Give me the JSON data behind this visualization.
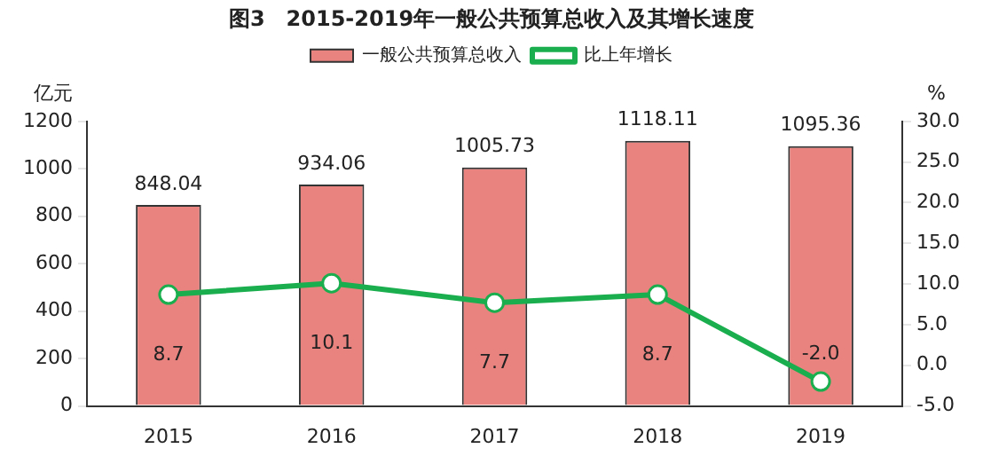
{
  "chart_data": {
    "type": "bar",
    "title": "图3　2015-2019年一般公共预算总收入及其增长速度",
    "categories": [
      "2015",
      "2016",
      "2017",
      "2018",
      "2019"
    ],
    "ylabel": "亿元",
    "y2label": "%",
    "series": [
      {
        "name": "一般公共预算总收入",
        "color": "#e8837f",
        "values": [
          848.04,
          934.06,
          1005.73,
          1118.11,
          1095.36
        ],
        "value_labels": [
          "848.04",
          "934.06",
          "1005.73",
          "1118.11",
          "1095.36"
        ]
      },
      {
        "name": "比上年增长",
        "type": "line",
        "axis": "y2",
        "color": "#1aae4e",
        "values": [
          8.7,
          10.1,
          7.7,
          8.7,
          -2.0
        ],
        "value_labels": [
          "8.7",
          "10.1",
          "7.7",
          "8.7",
          "-2.0"
        ]
      }
    ],
    "ylim": [
      0,
      1200
    ],
    "yticks": [
      0,
      200,
      400,
      600,
      800,
      1000,
      1200
    ],
    "y2lim": [
      -5,
      30
    ],
    "y2ticks": [
      {
        "value": -5,
        "label": "-5.0"
      },
      {
        "value": 0,
        "label": "0.0"
      },
      {
        "value": 5,
        "label": "5.0"
      },
      {
        "value": 10,
        "label": "10.0"
      },
      {
        "value": 15,
        "label": "15.0"
      },
      {
        "value": 20,
        "label": "20.0"
      },
      {
        "value": 25,
        "label": "25.0"
      },
      {
        "value": 30,
        "label": "30.0"
      }
    ],
    "legend": "top",
    "marker": "circle",
    "grid": false
  }
}
